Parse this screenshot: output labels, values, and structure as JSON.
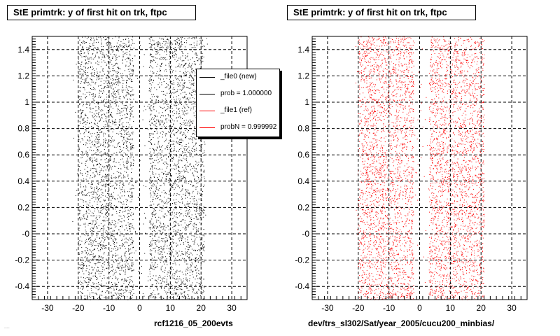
{
  "chart_data": [
    {
      "type": "scatter",
      "title": "StE primtrk: y of first hit on trk, ftpc",
      "xlabel": "rcf1216_05_200evts",
      "ylabel": "",
      "xlim": [
        -35,
        35
      ],
      "ylim": [
        -0.5,
        1.5
      ],
      "xticks": [
        -30,
        -20,
        -10,
        0,
        10,
        20,
        30
      ],
      "xtick_labels": [
        "-30",
        "-20",
        "-10",
        "0",
        "10",
        "20",
        "30"
      ],
      "yticks": [
        -0.4,
        -0.2,
        0.0,
        0.2,
        0.4,
        0.6,
        0.8,
        1.0,
        1.2,
        1.4
      ],
      "ytick_labels": [
        "-0.4",
        "-0.2",
        "-0",
        "0.2",
        "0.4",
        "0.6",
        "0.8",
        "1",
        "1.2",
        "1.4"
      ],
      "grid": true,
      "series": [
        {
          "name": "_file0 (new)",
          "color": "#000000",
          "x_range": [
            -22,
            22
          ],
          "y_range": [
            -0.5,
            1.5
          ],
          "bands": [
            [
              -20,
              -2
            ],
            [
              3,
              21
            ]
          ]
        }
      ],
      "legend": {
        "placement": "top-right",
        "entries": [
          {
            "text": "_file0 (new)",
            "color": "#000000"
          },
          {
            "text": "prob = 1.000000",
            "color": "#000000"
          },
          {
            "text": "_file1 (ref)",
            "color": "#ff0000"
          },
          {
            "text": "probN = 0.999992",
            "color": "#ff0000"
          }
        ]
      }
    },
    {
      "type": "scatter",
      "title": "StE primtrk: y of first hit on trk, ftpc",
      "xlabel": "dev/trs_sl302/Sat/year_2005/cucu200_minbias/",
      "ylabel": "",
      "xlim": [
        -35,
        35
      ],
      "ylim": [
        -0.5,
        1.5
      ],
      "xticks": [
        -30,
        -20,
        -10,
        0,
        10,
        20,
        30
      ],
      "xtick_labels": [
        "-30",
        "-20",
        "-10",
        "0",
        "10",
        "20",
        "30"
      ],
      "yticks": [
        -0.4,
        -0.2,
        0.0,
        0.2,
        0.4,
        0.6,
        0.8,
        1.0,
        1.2,
        1.4
      ],
      "ytick_labels": [
        "-0.4",
        "-0.2",
        "-0",
        "0.2",
        "0.4",
        "0.6",
        "0.8",
        "1",
        "1.2",
        "1.4"
      ],
      "grid": true,
      "series": [
        {
          "name": "_file1 (ref)",
          "color": "#ff0000",
          "x_range": [
            -21,
            21
          ],
          "y_range": [
            -0.5,
            1.5
          ],
          "bands": [
            [
              -20,
              -2
            ],
            [
              3,
              21
            ]
          ]
        }
      ]
    }
  ],
  "footer": "...."
}
